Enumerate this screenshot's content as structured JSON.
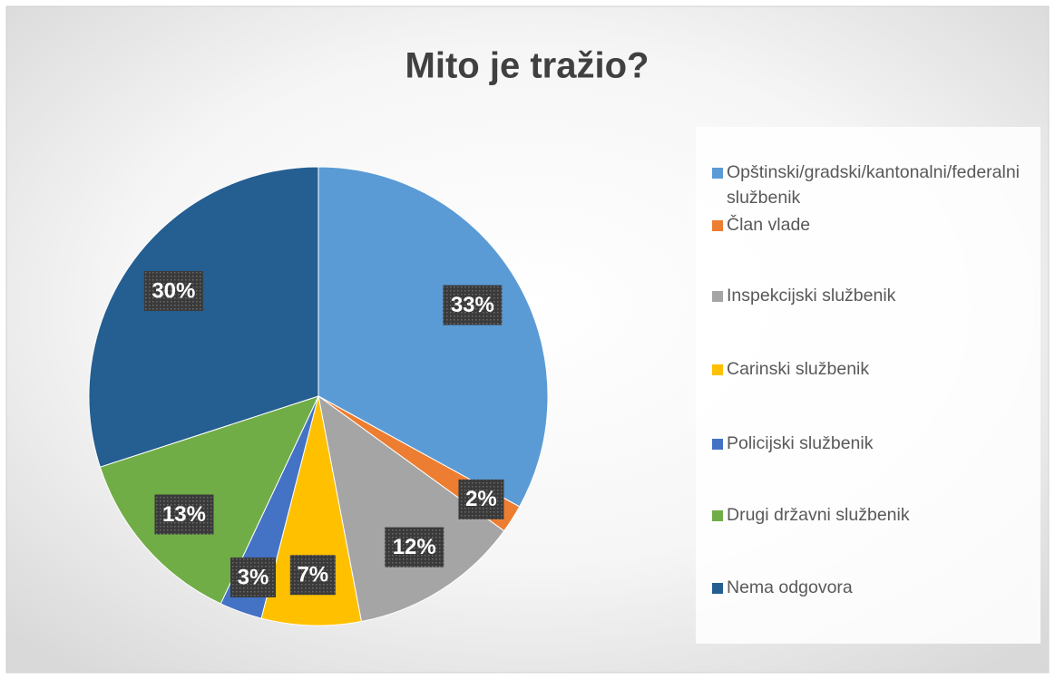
{
  "chart_data": {
    "type": "pie",
    "title": "Mito je tražio?",
    "categories": [
      "Opštinski/gradski/kantonalni/federalni službenik",
      "Član vlade",
      "Inspekcijski službenik",
      "Carinski službenik",
      "Policijski službenik",
      "Drugi državni službenik",
      "Nema odgovora"
    ],
    "values": [
      33,
      2,
      12,
      7,
      3,
      13,
      30
    ],
    "value_labels": [
      "33%",
      "2%",
      "12%",
      "7%",
      "3%",
      "13%",
      "30%"
    ],
    "colors": [
      "#5b9bd5",
      "#ed7d31",
      "#a5a5a5",
      "#ffc000",
      "#4472c4",
      "#70ad47",
      "#255e91"
    ],
    "legend": "right"
  }
}
